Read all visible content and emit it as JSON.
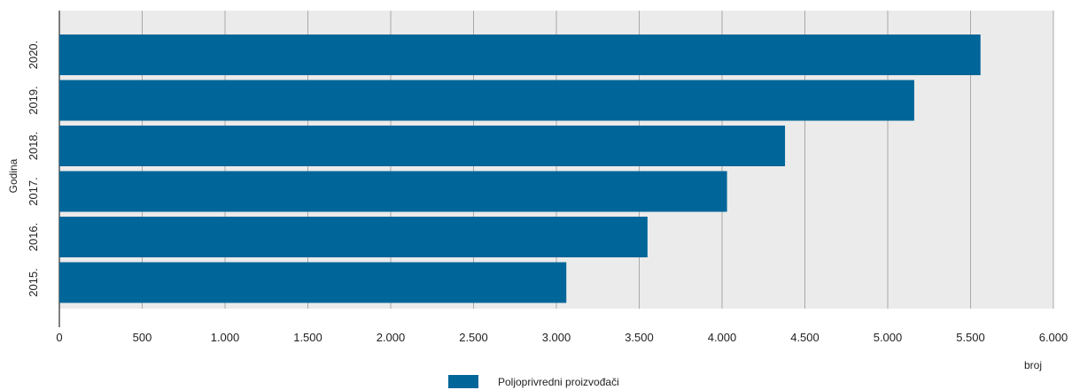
{
  "chart_data": {
    "type": "bar",
    "orientation": "horizontal",
    "categories": [
      "2020.",
      "2019.",
      "2018.",
      "2017.",
      "2016.",
      "2015."
    ],
    "series": [
      {
        "name": "Poljoprivredni proizvođači",
        "values": [
          5560,
          5160,
          4380,
          4030,
          3550,
          3060
        ],
        "color": "#006699"
      }
    ],
    "xlabel": "broj",
    "ylabel": "Godina",
    "xlim": [
      0,
      6000
    ],
    "xticks": [
      0,
      500,
      1000,
      1500,
      2000,
      2500,
      3000,
      3500,
      4000,
      4500,
      5000,
      5500,
      6000
    ],
    "xtick_labels": [
      "0",
      "500",
      "1.000",
      "1.500",
      "2.000",
      "2.500",
      "3.000",
      "3.500",
      "4.000",
      "4.500",
      "5.000",
      "5.500",
      "6.000"
    ],
    "grid": "vertical",
    "background_color": "#ebebeb",
    "legend_position": "bottom"
  }
}
